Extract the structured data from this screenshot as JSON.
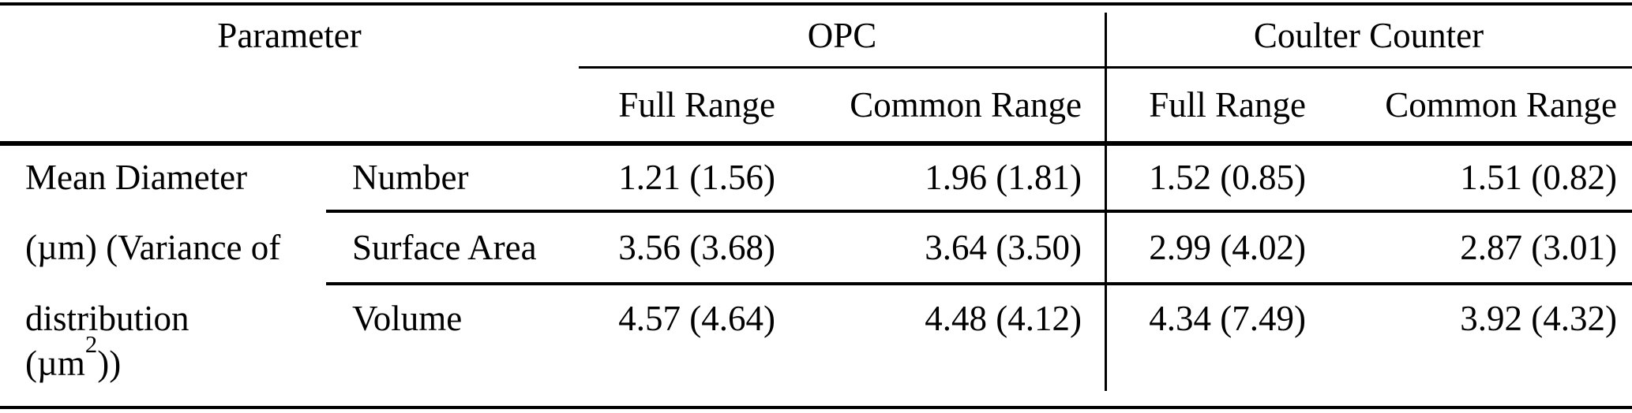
{
  "table": {
    "header": {
      "parameter_label": "Parameter",
      "opc_label": "OPC",
      "coulter_label": "Coulter Counter",
      "opc_sub": {
        "full": "Full Range",
        "common": "Common Range"
      },
      "coulter_sub": {
        "full": "Full Range",
        "common": "Common Range"
      }
    },
    "row_group_label": {
      "line1": "Mean Diameter",
      "line2": "(µm) (Variance of",
      "line3": "distribution",
      "line4_prefix": "(µm",
      "line4_superscript": "2",
      "line4_suffix": "))"
    },
    "rows": [
      {
        "metric": "Number",
        "opc_full_range": "1.21 (1.56)",
        "opc_common_range": "1.96 (1.81)",
        "coulter_full_range": "1.52 (0.85)",
        "coulter_common_range": "1.51 (0.82)"
      },
      {
        "metric": "Surface Area",
        "opc_full_range": "3.56 (3.68)",
        "opc_common_range": "3.64 (3.50)",
        "coulter_full_range": "2.99 (4.02)",
        "coulter_common_range": "2.87 (3.01)"
      },
      {
        "metric": "Volume",
        "opc_full_range": "4.57 (4.64)",
        "opc_common_range": "4.48 (4.12)",
        "coulter_full_range": "4.34 (7.49)",
        "coulter_common_range": "3.92 (4.32)"
      }
    ],
    "colors": {
      "text": "#000000",
      "background": "#ffffff",
      "rule": "#000000"
    }
  }
}
